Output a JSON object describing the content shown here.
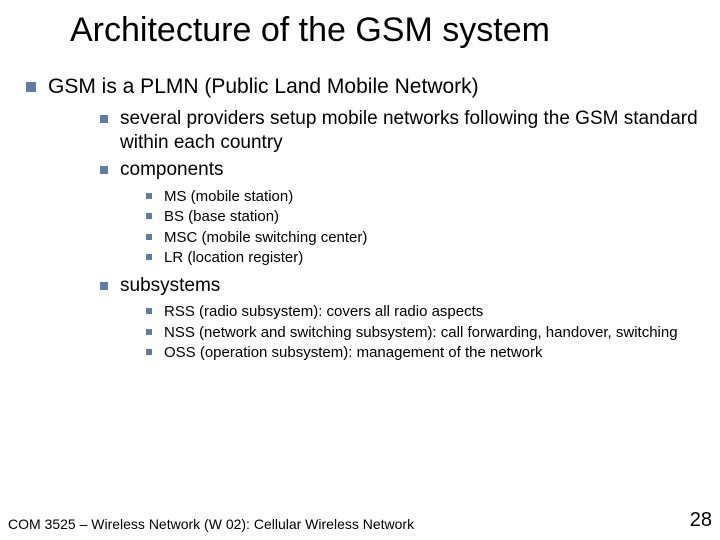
{
  "title": "Architecture of the GSM system",
  "bullet_lvl1": "GSM is a PLMN (Public Land Mobile Network)",
  "lvl2": {
    "a": "several providers setup mobile networks following the GSM standard within each country",
    "b": "components",
    "c": "subsystems"
  },
  "components": {
    "a": "MS (mobile station)",
    "b": "BS (base station)",
    "c": "MSC (mobile switching center)",
    "d": "LR (location register)"
  },
  "subsystems": {
    "a": "RSS (radio subsystem): covers all radio aspects",
    "b": "NSS (network and switching subsystem): call forwarding, handover, switching",
    "c": "OSS (operation subsystem): management of the network"
  },
  "footer": {
    "course": "COM 3525 – Wireless Network (W 02): Cellular Wireless Network",
    "page": "28"
  },
  "colors": {
    "bullet": "#5e7ca7",
    "text": "#000000",
    "background": "#ffffff"
  }
}
